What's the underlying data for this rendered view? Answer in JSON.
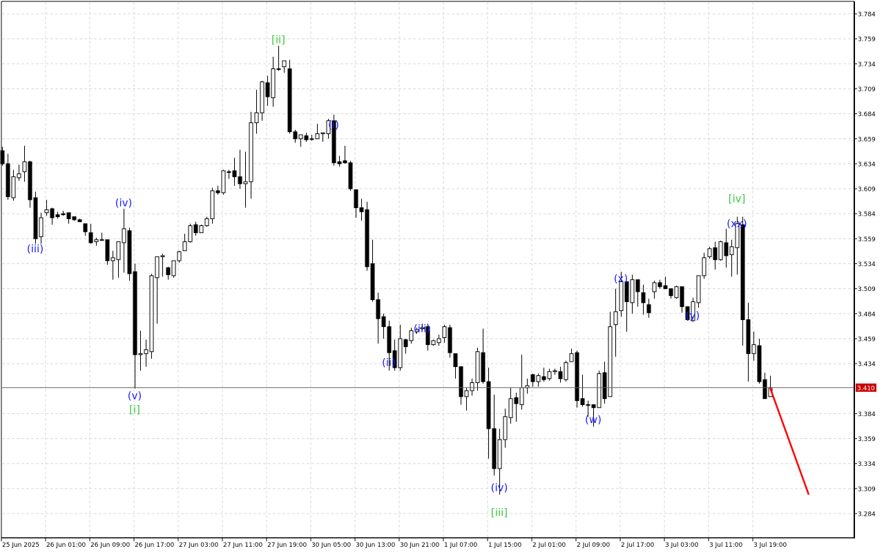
{
  "chart_data": {
    "type": "candlestick",
    "title": "",
    "y_ticks": [
      "3.784",
      "3.759",
      "3.734",
      "3.709",
      "3.684",
      "3.659",
      "3.634",
      "3.609",
      "3.584",
      "3.559",
      "3.534",
      "3.509",
      "3.484",
      "3.459",
      "3.434",
      "3.384",
      "3.359",
      "3.334",
      "3.309",
      "3.284"
    ],
    "ylim": [
      3.27,
      3.795
    ],
    "x_tick_labels": [
      "25 Jun 2025",
      "26 Jun 01:00",
      "26 Jun 09:00",
      "26 Jun 17:00",
      "27 Jun 03:00",
      "27 Jun 11:00",
      "27 Jun 19:00",
      "30 Jun 05:00",
      "30 Jun 13:00",
      "30 Jun 21:00",
      "1 Jul 07:00",
      "1 Jul 15:00",
      "2 Jul 01:00",
      "2 Jul 09:00",
      "2 Jul 17:00",
      "3 Jul 03:00",
      "3 Jul 11:00",
      "3 Jul 19:00"
    ],
    "x_tick_every_n_bars": 8,
    "timeframe": "H1",
    "grid": true,
    "current_price": 3.41,
    "current_price_label": "3.410",
    "colors": {
      "bull_fill": "#ffffff",
      "bear_fill": "#000000",
      "candle_outline": "#000000",
      "grid": "#d8d8d8",
      "price_tag": "#c80000",
      "wave_minor": "#1e1eff",
      "wave_major": "#3cc83c",
      "forecast": "#ff0000"
    },
    "ohlc": [
      [
        3.647,
        3.651,
        3.632,
        3.634
      ],
      [
        3.634,
        3.644,
        3.598,
        3.601
      ],
      [
        3.6,
        3.628,
        3.597,
        3.621
      ],
      [
        3.62,
        3.633,
        3.617,
        3.624
      ],
      [
        3.626,
        3.652,
        3.616,
        3.636
      ],
      [
        3.636,
        3.637,
        3.59,
        3.598
      ],
      [
        3.6,
        3.606,
        3.554,
        3.559
      ],
      [
        3.561,
        3.585,
        3.554,
        3.58
      ],
      [
        3.585,
        3.598,
        3.582,
        3.588
      ],
      [
        3.589,
        3.59,
        3.573,
        3.58
      ],
      [
        3.583,
        3.586,
        3.579,
        3.581
      ],
      [
        3.584,
        3.587,
        3.582,
        3.583
      ],
      [
        3.585,
        3.585,
        3.574,
        3.579
      ],
      [
        3.581,
        3.581,
        3.577,
        3.578
      ],
      [
        3.578,
        3.579,
        3.576,
        3.576
      ],
      [
        3.574,
        3.574,
        3.562,
        3.566
      ],
      [
        3.565,
        3.574,
        3.554,
        3.555
      ],
      [
        3.556,
        3.56,
        3.552,
        3.558
      ],
      [
        3.558,
        3.565,
        3.558,
        3.558
      ],
      [
        3.558,
        3.558,
        3.533,
        3.537
      ],
      [
        3.537,
        3.547,
        3.518,
        3.54
      ],
      [
        3.538,
        3.556,
        3.52,
        3.556
      ],
      [
        3.555,
        3.589,
        3.525,
        3.569
      ],
      [
        3.567,
        3.57,
        3.517,
        3.524
      ],
      [
        3.526,
        3.534,
        3.409,
        3.443
      ],
      [
        3.443,
        3.467,
        3.427,
        3.444
      ],
      [
        3.444,
        3.458,
        3.431,
        3.448
      ],
      [
        3.446,
        3.524,
        3.439,
        3.522
      ],
      [
        3.52,
        3.541,
        3.474,
        3.541
      ],
      [
        3.541,
        3.544,
        3.521,
        3.542
      ],
      [
        3.53,
        3.531,
        3.518,
        3.523
      ],
      [
        3.522,
        3.537,
        3.52,
        3.537
      ],
      [
        3.537,
        3.547,
        3.535,
        3.546
      ],
      [
        3.547,
        3.564,
        3.547,
        3.556
      ],
      [
        3.556,
        3.574,
        3.555,
        3.572
      ],
      [
        3.573,
        3.576,
        3.562,
        3.565
      ],
      [
        3.565,
        3.573,
        3.565,
        3.572
      ],
      [
        3.572,
        3.581,
        3.571,
        3.579
      ],
      [
        3.579,
        3.61,
        3.574,
        3.607
      ],
      [
        3.607,
        3.612,
        3.603,
        3.605
      ],
      [
        3.605,
        3.628,
        3.603,
        3.627
      ],
      [
        3.626,
        3.628,
        3.619,
        3.626
      ],
      [
        3.627,
        3.64,
        3.612,
        3.621
      ],
      [
        3.621,
        3.648,
        3.609,
        3.614
      ],
      [
        3.614,
        3.646,
        3.59,
        3.616
      ],
      [
        3.616,
        3.686,
        3.599,
        3.675
      ],
      [
        3.675,
        3.708,
        3.664,
        3.685
      ],
      [
        3.685,
        3.717,
        3.677,
        3.716
      ],
      [
        3.715,
        3.722,
        3.692,
        3.701
      ],
      [
        3.7,
        3.741,
        3.691,
        3.729
      ],
      [
        3.729,
        3.752,
        3.727,
        3.729
      ],
      [
        3.731,
        3.737,
        3.725,
        3.737
      ],
      [
        3.729,
        3.738,
        3.664,
        3.666
      ],
      [
        3.666,
        3.668,
        3.655,
        3.659
      ],
      [
        3.659,
        3.663,
        3.651,
        3.663
      ],
      [
        3.662,
        3.665,
        3.656,
        3.658
      ],
      [
        3.659,
        3.663,
        3.657,
        3.659
      ],
      [
        3.659,
        3.674,
        3.659,
        3.664
      ],
      [
        3.664,
        3.665,
        3.656,
        3.665
      ],
      [
        3.664,
        3.679,
        3.659,
        3.677
      ],
      [
        3.677,
        3.683,
        3.632,
        3.635
      ],
      [
        3.636,
        3.642,
        3.631,
        3.634
      ],
      [
        3.637,
        3.652,
        3.634,
        3.635
      ],
      [
        3.635,
        3.637,
        3.607,
        3.609
      ],
      [
        3.608,
        3.608,
        3.58,
        3.59
      ],
      [
        3.59,
        3.599,
        3.577,
        3.586
      ],
      [
        3.588,
        3.596,
        3.527,
        3.531
      ],
      [
        3.534,
        3.558,
        3.496,
        3.498
      ],
      [
        3.498,
        3.505,
        3.454,
        3.479
      ],
      [
        3.481,
        3.484,
        3.459,
        3.471
      ],
      [
        3.471,
        3.477,
        3.427,
        3.445
      ],
      [
        3.447,
        3.458,
        3.427,
        3.43
      ],
      [
        3.43,
        3.473,
        3.427,
        3.459
      ],
      [
        3.458,
        3.459,
        3.444,
        3.451
      ],
      [
        3.457,
        3.47,
        3.454,
        3.467
      ],
      [
        3.466,
        3.47,
        3.464,
        3.468
      ],
      [
        3.469,
        3.474,
        3.467,
        3.47
      ],
      [
        3.471,
        3.474,
        3.447,
        3.453
      ],
      [
        3.453,
        3.458,
        3.452,
        3.457
      ],
      [
        3.455,
        3.463,
        3.452,
        3.459
      ],
      [
        3.46,
        3.473,
        3.455,
        3.471
      ],
      [
        3.47,
        3.473,
        3.44,
        3.445
      ],
      [
        3.444,
        3.444,
        3.419,
        3.431
      ],
      [
        3.431,
        3.431,
        3.393,
        3.401
      ],
      [
        3.401,
        3.41,
        3.387,
        3.407
      ],
      [
        3.407,
        3.419,
        3.402,
        3.415
      ],
      [
        3.415,
        3.45,
        3.407,
        3.446
      ],
      [
        3.445,
        3.469,
        3.414,
        3.416
      ],
      [
        3.416,
        3.43,
        3.339,
        3.369
      ],
      [
        3.369,
        3.403,
        3.322,
        3.329
      ],
      [
        3.329,
        3.369,
        3.303,
        3.358
      ],
      [
        3.358,
        3.389,
        3.35,
        3.381
      ],
      [
        3.38,
        3.41,
        3.374,
        3.399
      ],
      [
        3.4,
        3.405,
        3.376,
        3.394
      ],
      [
        3.393,
        3.443,
        3.388,
        3.41
      ],
      [
        3.41,
        3.419,
        3.404,
        3.412
      ],
      [
        3.423,
        3.424,
        3.411,
        3.416
      ],
      [
        3.416,
        3.424,
        3.411,
        3.422
      ],
      [
        3.421,
        3.43,
        3.416,
        3.418
      ],
      [
        3.419,
        3.429,
        3.417,
        3.426
      ],
      [
        3.426,
        3.429,
        3.423,
        3.427
      ],
      [
        3.426,
        3.431,
        3.415,
        3.419
      ],
      [
        3.418,
        3.437,
        3.416,
        3.435
      ],
      [
        3.436,
        3.449,
        3.436,
        3.444
      ],
      [
        3.445,
        3.447,
        3.39,
        3.397
      ],
      [
        3.399,
        3.423,
        3.391,
        3.393
      ],
      [
        3.393,
        3.397,
        3.381,
        3.393
      ],
      [
        3.393,
        3.393,
        3.371,
        3.39
      ],
      [
        3.39,
        3.427,
        3.39,
        3.424
      ],
      [
        3.425,
        3.436,
        3.394,
        3.399
      ],
      [
        3.401,
        3.486,
        3.401,
        3.471
      ],
      [
        3.473,
        3.509,
        3.441,
        3.486
      ],
      [
        3.487,
        3.526,
        3.481,
        3.516
      ],
      [
        3.516,
        3.516,
        3.466,
        3.496
      ],
      [
        3.495,
        3.523,
        3.484,
        3.518
      ],
      [
        3.518,
        3.518,
        3.491,
        3.506
      ],
      [
        3.505,
        3.513,
        3.483,
        3.495
      ],
      [
        3.493,
        3.499,
        3.48,
        3.485
      ],
      [
        3.506,
        3.517,
        3.499,
        3.515
      ],
      [
        3.515,
        3.518,
        3.509,
        3.511
      ],
      [
        3.512,
        3.521,
        3.509,
        3.509
      ],
      [
        3.509,
        3.509,
        3.499,
        3.502
      ],
      [
        3.5,
        3.512,
        3.499,
        3.511
      ],
      [
        3.511,
        3.511,
        3.485,
        3.491
      ],
      [
        3.491,
        3.491,
        3.477,
        3.478
      ],
      [
        3.477,
        3.5,
        3.476,
        3.496
      ],
      [
        3.495,
        3.522,
        3.49,
        3.522
      ],
      [
        3.522,
        3.545,
        3.519,
        3.54
      ],
      [
        3.541,
        3.551,
        3.539,
        3.549
      ],
      [
        3.55,
        3.556,
        3.528,
        3.538
      ],
      [
        3.538,
        3.557,
        3.537,
        3.556
      ],
      [
        3.555,
        3.569,
        3.53,
        3.542
      ],
      [
        3.543,
        3.558,
        3.521,
        3.551
      ],
      [
        3.55,
        3.581,
        3.523,
        3.574
      ],
      [
        3.573,
        3.581,
        3.452,
        3.478
      ],
      [
        3.478,
        3.495,
        3.416,
        3.444
      ],
      [
        3.444,
        3.466,
        3.437,
        3.453
      ],
      [
        3.452,
        3.459,
        3.414,
        3.416
      ],
      [
        3.418,
        3.425,
        3.399,
        3.399
      ],
      [
        3.401,
        3.422,
        3.401,
        3.41
      ]
    ],
    "wave_labels": [
      {
        "text": "(iii)",
        "bar": 6,
        "price": 3.549,
        "degree": "minor"
      },
      {
        "text": "(iv)",
        "bar": 22,
        "price": 3.595,
        "degree": "minor"
      },
      {
        "text": "(v)",
        "bar": 24,
        "price": 3.402,
        "degree": "minor"
      },
      {
        "text": "[i]",
        "bar": 24,
        "price": 3.388,
        "degree": "major"
      },
      {
        "text": "[ii]",
        "bar": 50,
        "price": 3.758,
        "degree": "major"
      },
      {
        "text": "(i)",
        "bar": 60,
        "price": 3.673,
        "degree": "minor"
      },
      {
        "text": "(ii)",
        "bar": 70,
        "price": 3.435,
        "degree": "minor"
      },
      {
        "text": "(iii)",
        "bar": 76,
        "price": 3.469,
        "degree": "minor"
      },
      {
        "text": "(iv)",
        "bar": 90,
        "price": 3.31,
        "degree": "minor"
      },
      {
        "text": "[iii]",
        "bar": 90,
        "price": 3.285,
        "degree": "major"
      },
      {
        "text": "(w)",
        "bar": 107,
        "price": 3.378,
        "degree": "minor"
      },
      {
        "text": "(x)",
        "bar": 112,
        "price": 3.519,
        "degree": "minor"
      },
      {
        "text": "(y)",
        "bar": 125,
        "price": 3.482,
        "degree": "minor"
      },
      {
        "text": "(xx)",
        "bar": 133,
        "price": 3.574,
        "degree": "minor"
      },
      {
        "text": "[iv]",
        "bar": 133,
        "price": 3.599,
        "degree": "major"
      }
    ],
    "forecast_line": {
      "from": {
        "bar": 139,
        "price": 3.41
      },
      "to": {
        "bar": 146,
        "price": 3.303
      }
    }
  }
}
